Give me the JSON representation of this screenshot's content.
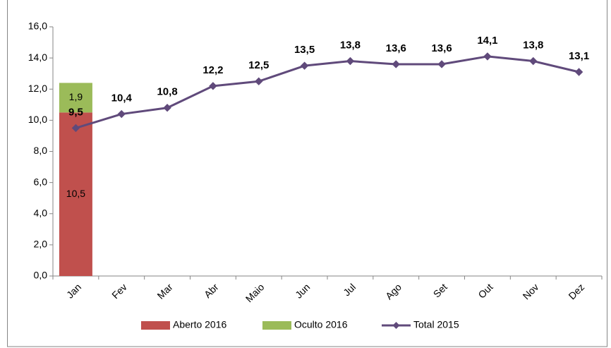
{
  "chart_data": {
    "type": "bar",
    "categories": [
      "Jan",
      "Fev",
      "Mar",
      "Abr",
      "Maio",
      "Jun",
      "Jul",
      "Ago",
      "Set",
      "Out",
      "Nov",
      "Dez"
    ],
    "series": [
      {
        "name": "Aberto 2016",
        "type": "bar",
        "color": "#c0504d",
        "values": [
          10.5,
          null,
          null,
          null,
          null,
          null,
          null,
          null,
          null,
          null,
          null,
          null
        ],
        "value_labels": [
          "10,5",
          null,
          null,
          null,
          null,
          null,
          null,
          null,
          null,
          null,
          null,
          null
        ]
      },
      {
        "name": "Oculto 2016",
        "type": "bar",
        "color": "#9bbb59",
        "values": [
          1.9,
          null,
          null,
          null,
          null,
          null,
          null,
          null,
          null,
          null,
          null,
          null
        ],
        "value_labels": [
          "1,9",
          null,
          null,
          null,
          null,
          null,
          null,
          null,
          null,
          null,
          null,
          null
        ]
      },
      {
        "name": "Total 2015",
        "type": "line",
        "color": "#604a7b",
        "values": [
          9.5,
          10.4,
          10.8,
          12.2,
          12.5,
          13.5,
          13.8,
          13.6,
          13.6,
          14.1,
          13.8,
          13.1
        ],
        "value_labels": [
          "9,5",
          "10,4",
          "10,8",
          "12,2",
          "12,5",
          "13,5",
          "13,8",
          "13,6",
          "13,6",
          "14,1",
          "13,8",
          "13,1"
        ]
      }
    ],
    "ylim": [
      0,
      16
    ],
    "yticks": [
      {
        "value": 0,
        "label": "0,0"
      },
      {
        "value": 2,
        "label": "2,0"
      },
      {
        "value": 4,
        "label": "4,0"
      },
      {
        "value": 6,
        "label": "6,0"
      },
      {
        "value": 8,
        "label": "8,0"
      },
      {
        "value": 10,
        "label": "10,0"
      },
      {
        "value": 12,
        "label": "12,0"
      },
      {
        "value": 14,
        "label": "14,0"
      },
      {
        "value": 16,
        "label": "16,0"
      }
    ],
    "grid": false,
    "legend": "bottom"
  }
}
